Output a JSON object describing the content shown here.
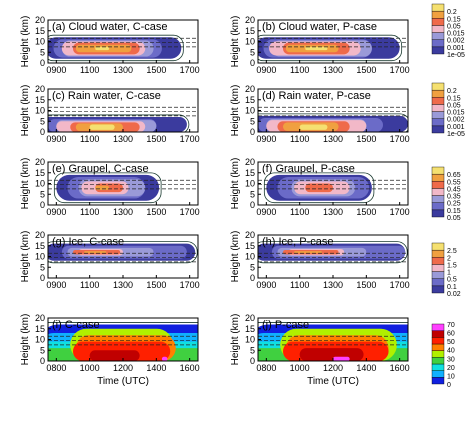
{
  "figure": {
    "xlabel": "Time (UTC)",
    "ylabel": "Height (km)"
  },
  "chart_data": [
    {
      "type": "heatmap",
      "title": "(a) Cloud water, C-case",
      "x_ticks": [
        "0900",
        "1100",
        "1300",
        "1500",
        "1700"
      ],
      "y_ticks": [
        "0",
        "5",
        "10",
        "15",
        "20"
      ],
      "ylim": [
        0,
        20
      ],
      "colorbar": [
        "1e-05",
        "0.001",
        "0.002",
        "0.015",
        "0.05",
        "0.15",
        "0.2"
      ],
      "colors": [
        "#3b3b9e",
        "#6b6bc8",
        "#9a9ad8",
        "#f2b8c8",
        "#ef6a4a",
        "#f0a040",
        "#f5e070"
      ],
      "layers": [
        {
          "level": 0,
          "t0": 820,
          "t1": 1630,
          "z0": 2,
          "z1": 12
        },
        {
          "level": 1,
          "t0": 850,
          "t1": 1480,
          "z0": 2.5,
          "z1": 11
        },
        {
          "level": 2,
          "t0": 880,
          "t1": 1450,
          "z0": 3,
          "z1": 10.5
        },
        {
          "level": 3,
          "t0": 920,
          "t1": 1420,
          "z0": 3.5,
          "z1": 10
        },
        {
          "level": 4,
          "t0": 960,
          "t1": 1360,
          "z0": 4,
          "z1": 9.5
        },
        {
          "level": 5,
          "t0": 1010,
          "t1": 1290,
          "z0": 5,
          "z1": 8.5
        },
        {
          "level": 6,
          "t0": 1080,
          "t1": 1210,
          "z0": 6,
          "z1": 7.5
        }
      ]
    },
    {
      "type": "heatmap",
      "title": "(b) Cloud water, P-case",
      "x_ticks": [
        "0900",
        "1100",
        "1300",
        "1500",
        "1700"
      ],
      "y_ticks": [
        "0",
        "5",
        "10",
        "15",
        "20"
      ],
      "ylim": [
        0,
        20
      ],
      "colorbar": [
        "1e-05",
        "0.001",
        "0.002",
        "0.015",
        "0.05",
        "0.15",
        "0.2"
      ],
      "colors": [
        "#3b3b9e",
        "#6b6bc8",
        "#9a9ad8",
        "#f2b8c8",
        "#ef6a4a",
        "#f0a040",
        "#f5e070"
      ],
      "layers": [
        {
          "level": 0,
          "t0": 820,
          "t1": 1660,
          "z0": 2,
          "z1": 12
        },
        {
          "level": 1,
          "t0": 850,
          "t1": 1520,
          "z0": 2.5,
          "z1": 11
        },
        {
          "level": 2,
          "t0": 880,
          "t1": 1480,
          "z0": 3,
          "z1": 10.5
        },
        {
          "level": 3,
          "t0": 910,
          "t1": 1440,
          "z0": 3.5,
          "z1": 10
        },
        {
          "level": 4,
          "t0": 960,
          "t1": 1400,
          "z0": 4,
          "z1": 9.5
        },
        {
          "level": 5,
          "t0": 1010,
          "t1": 1320,
          "z0": 5,
          "z1": 8.5
        },
        {
          "level": 6,
          "t0": 1080,
          "t1": 1240,
          "z0": 6,
          "z1": 7.5
        }
      ]
    },
    {
      "type": "heatmap",
      "title": "(c) Rain water, C-case",
      "x_ticks": [
        "0900",
        "1100",
        "1300",
        "1500",
        "1700"
      ],
      "y_ticks": [
        "0",
        "5",
        "10",
        "15",
        "20"
      ],
      "ylim": [
        0,
        20
      ],
      "colorbar": [
        "1e-05",
        "0.001",
        "0.002",
        "0.015",
        "0.05",
        "0.15",
        "0.2"
      ],
      "colors": [
        "#3b3b9e",
        "#6b6bc8",
        "#9a9ad8",
        "#f2b8c8",
        "#ef6a4a",
        "#f0a040",
        "#f5e070"
      ],
      "layers": [
        {
          "level": 0,
          "t0": 800,
          "t1": 1650,
          "z0": 0,
          "z1": 7
        },
        {
          "level": 1,
          "t0": 830,
          "t1": 1500,
          "z0": 0,
          "z1": 6
        },
        {
          "level": 2,
          "t0": 860,
          "t1": 1460,
          "z0": 0,
          "z1": 5.5
        },
        {
          "level": 3,
          "t0": 900,
          "t1": 1420,
          "z0": 0,
          "z1": 5
        },
        {
          "level": 4,
          "t0": 950,
          "t1": 1360,
          "z0": 0,
          "z1": 4.5
        },
        {
          "level": 5,
          "t0": 1010,
          "t1": 1300,
          "z0": 0.5,
          "z1": 4
        },
        {
          "level": 6,
          "t0": 1060,
          "t1": 1230,
          "z0": 1,
          "z1": 3.5
        }
      ]
    },
    {
      "type": "heatmap",
      "title": "(d) Rain water, P-case",
      "x_ticks": [
        "0900",
        "1100",
        "1300",
        "1500",
        "1700"
      ],
      "y_ticks": [
        "0",
        "5",
        "10",
        "15",
        "20"
      ],
      "ylim": [
        0,
        20
      ],
      "colorbar": [
        "1e-05",
        "0.001",
        "0.002",
        "0.015",
        "0.05",
        "0.15",
        "0.2"
      ],
      "colors": [
        "#3b3b9e",
        "#6b6bc8",
        "#9a9ad8",
        "#f2b8c8",
        "#ef6a4a",
        "#f0a040",
        "#f5e070"
      ],
      "layers": [
        {
          "level": 0,
          "t0": 800,
          "t1": 1690,
          "z0": 0,
          "z1": 7.5
        },
        {
          "level": 1,
          "t0": 830,
          "t1": 1560,
          "z0": 0,
          "z1": 6.5
        },
        {
          "level": 2,
          "t0": 860,
          "t1": 1500,
          "z0": 0,
          "z1": 6
        },
        {
          "level": 3,
          "t0": 900,
          "t1": 1460,
          "z0": 0,
          "z1": 5.5
        },
        {
          "level": 4,
          "t0": 940,
          "t1": 1400,
          "z0": 0,
          "z1": 5
        },
        {
          "level": 5,
          "t0": 1000,
          "t1": 1320,
          "z0": 0.5,
          "z1": 4.5
        },
        {
          "level": 6,
          "t0": 1060,
          "t1": 1240,
          "z0": 1,
          "z1": 3.5
        }
      ]
    },
    {
      "type": "heatmap",
      "title": "(e) Graupel, C-case",
      "x_ticks": [
        "0900",
        "1100",
        "1300",
        "1500",
        "1700"
      ],
      "y_ticks": [
        "0",
        "5",
        "10",
        "15",
        "20"
      ],
      "ylim": [
        0,
        20
      ],
      "colorbar": [
        "0.05",
        "0.15",
        "0.25",
        "0.35",
        "0.45",
        "0.55",
        "0.65"
      ],
      "colors": [
        "#3b3b9e",
        "#6b6bc8",
        "#9a9ad8",
        "#f2b8c8",
        "#ef6a4a",
        "#f0a040",
        "#f5e070"
      ],
      "layers": [
        {
          "level": 0,
          "t0": 900,
          "t1": 1470,
          "z0": 2,
          "z1": 14
        },
        {
          "level": 1,
          "t0": 940,
          "t1": 1420,
          "z0": 3,
          "z1": 13
        },
        {
          "level": 2,
          "t0": 980,
          "t1": 1380,
          "z0": 4,
          "z1": 12
        },
        {
          "level": 3,
          "t0": 1030,
          "t1": 1320,
          "z0": 5,
          "z1": 11
        },
        {
          "level": 4,
          "t0": 1080,
          "t1": 1260,
          "z0": 6,
          "z1": 10
        },
        {
          "level": 5,
          "t0": 1120,
          "t1": 1210,
          "z0": 7,
          "z1": 9
        }
      ]
    },
    {
      "type": "heatmap",
      "title": "(f) Graupel, P-case",
      "x_ticks": [
        "0900",
        "1100",
        "1300",
        "1500",
        "1700"
      ],
      "y_ticks": [
        "0",
        "5",
        "10",
        "15",
        "20"
      ],
      "ylim": [
        0,
        20
      ],
      "colorbar": [
        "0.05",
        "0.15",
        "0.25",
        "0.35",
        "0.45",
        "0.55",
        "0.65"
      ],
      "colors": [
        "#3b3b9e",
        "#6b6bc8",
        "#9a9ad8",
        "#f2b8c8",
        "#ef6a4a",
        "#f0a040",
        "#f5e070"
      ],
      "layers": [
        {
          "level": 0,
          "t0": 900,
          "t1": 1520,
          "z0": 2,
          "z1": 14
        },
        {
          "level": 1,
          "t0": 940,
          "t1": 1470,
          "z0": 3,
          "z1": 13
        },
        {
          "level": 2,
          "t0": 990,
          "t1": 1420,
          "z0": 4,
          "z1": 12
        },
        {
          "level": 3,
          "t0": 1040,
          "t1": 1360,
          "z0": 5,
          "z1": 11
        },
        {
          "level": 4,
          "t0": 1120,
          "t1": 1300,
          "z0": 6,
          "z1": 10
        }
      ]
    },
    {
      "type": "heatmap",
      "title": "(g) Ice, C-case",
      "x_ticks": [
        "0900",
        "1100",
        "1300",
        "1500",
        "1700"
      ],
      "y_ticks": [
        "0",
        "5",
        "10",
        "15",
        "20"
      ],
      "ylim": [
        0,
        20
      ],
      "colorbar": [
        "0.02",
        "0.1",
        "0.5",
        "1",
        "1.5",
        "2",
        "2.5"
      ],
      "colors": [
        "#3b3b9e",
        "#6b6bc8",
        "#9a9ad8",
        "#f2b8c8",
        "#ef6a4a",
        "#f0a040",
        "#f5e070"
      ],
      "layers": [
        {
          "level": 0,
          "t0": 820,
          "t1": 1720,
          "z0": 8,
          "z1": 16
        },
        {
          "level": 1,
          "t0": 880,
          "t1": 1650,
          "z0": 9,
          "z1": 15
        },
        {
          "level": 2,
          "t0": 940,
          "t1": 1450,
          "z0": 10,
          "z1": 14
        },
        {
          "level": 3,
          "t0": 980,
          "t1": 1300,
          "z0": 10.5,
          "z1": 13.5
        },
        {
          "level": 4,
          "t0": 1000,
          "t1": 1250,
          "z0": 11,
          "z1": 13
        },
        {
          "level": 5,
          "t0": 1040,
          "t1": 1160,
          "z0": 11.5,
          "z1": 12.5
        }
      ]
    },
    {
      "type": "heatmap",
      "title": "(h) Ice, P-case",
      "x_ticks": [
        "0900",
        "1100",
        "1300",
        "1500",
        "1700"
      ],
      "y_ticks": [
        "0",
        "5",
        "10",
        "15",
        "20"
      ],
      "ylim": [
        0,
        20
      ],
      "colorbar": [
        "0.02",
        "0.1",
        "0.5",
        "1",
        "1.5",
        "2",
        "2.5"
      ],
      "colors": [
        "#3b3b9e",
        "#6b6bc8",
        "#9a9ad8",
        "#f2b8c8",
        "#ef6a4a",
        "#f0a040",
        "#f5e070"
      ],
      "layers": [
        {
          "level": 0,
          "t0": 820,
          "t1": 1720,
          "z0": 8,
          "z1": 16
        },
        {
          "level": 1,
          "t0": 880,
          "t1": 1680,
          "z0": 9,
          "z1": 15
        },
        {
          "level": 2,
          "t0": 940,
          "t1": 1500,
          "z0": 10,
          "z1": 14
        },
        {
          "level": 3,
          "t0": 980,
          "t1": 1340,
          "z0": 10.5,
          "z1": 13.5
        },
        {
          "level": 4,
          "t0": 1000,
          "t1": 1280,
          "z0": 11,
          "z1": 13
        },
        {
          "level": 5,
          "t0": 1040,
          "t1": 1180,
          "z0": 11.5,
          "z1": 12.5
        }
      ]
    },
    {
      "type": "heatmap",
      "title": "(i) C-case",
      "x_ticks": [
        "0800",
        "1000",
        "1200",
        "1400",
        "1600"
      ],
      "y_ticks": [
        "0",
        "5",
        "10",
        "15",
        "20"
      ],
      "ylim": [
        0,
        20
      ],
      "colorbar": [
        "0",
        "10",
        "20",
        "30",
        "40",
        "50",
        "60",
        "70"
      ],
      "colors": [
        "#1020e0",
        "#10b0ff",
        "#10e0e0",
        "#40d040",
        "#b0f000",
        "#ff8000",
        "#ff2000",
        "#c00000",
        "#ff40ff"
      ],
      "layers": [
        {
          "level": 0,
          "t0": 700,
          "t1": 1750,
          "z0": 0,
          "z1": 17
        },
        {
          "level": 1,
          "t0": 700,
          "t1": 1750,
          "z0": 0,
          "z1": 13
        },
        {
          "level": 2,
          "t0": 700,
          "t1": 1750,
          "z0": 0,
          "z1": 9
        },
        {
          "level": 3,
          "t0": 700,
          "t1": 1700,
          "z0": 0,
          "z1": 6
        },
        {
          "level": 4,
          "t0": 850,
          "t1": 1500,
          "z0": 0,
          "z1": 15
        },
        {
          "level": 5,
          "t0": 870,
          "t1": 1470,
          "z0": 0,
          "z1": 12
        },
        {
          "level": 6,
          "t0": 900,
          "t1": 1450,
          "z0": 0,
          "z1": 9
        },
        {
          "level": 7,
          "t0": 1000,
          "t1": 1300,
          "z0": 0,
          "z1": 5
        },
        {
          "level": 8,
          "t0": 1380,
          "t1": 1440,
          "z0": 0,
          "z1": 2
        }
      ]
    },
    {
      "type": "heatmap",
      "title": "(j) P-case",
      "x_ticks": [
        "0800",
        "1000",
        "1200",
        "1400",
        "1600"
      ],
      "y_ticks": [
        "0",
        "5",
        "10",
        "15",
        "20"
      ],
      "ylim": [
        0,
        20
      ],
      "colorbar": [
        "0",
        "10",
        "20",
        "30",
        "40",
        "50",
        "60",
        "70"
      ],
      "colors": [
        "#1020e0",
        "#10b0ff",
        "#10e0e0",
        "#40d040",
        "#b0f000",
        "#ff8000",
        "#ff2000",
        "#c00000",
        "#ff40ff"
      ],
      "layers": [
        {
          "level": 0,
          "t0": 700,
          "t1": 1750,
          "z0": 0,
          "z1": 17
        },
        {
          "level": 1,
          "t0": 700,
          "t1": 1750,
          "z0": 0,
          "z1": 13
        },
        {
          "level": 2,
          "t0": 700,
          "t1": 1750,
          "z0": 0,
          "z1": 9
        },
        {
          "level": 3,
          "t0": 700,
          "t1": 1720,
          "z0": 0,
          "z1": 6
        },
        {
          "level": 4,
          "t0": 850,
          "t1": 1550,
          "z0": 0,
          "z1": 15
        },
        {
          "level": 5,
          "t0": 870,
          "t1": 1520,
          "z0": 0,
          "z1": 12
        },
        {
          "level": 6,
          "t0": 900,
          "t1": 1480,
          "z0": 0,
          "z1": 9
        },
        {
          "level": 7,
          "t0": 1000,
          "t1": 1350,
          "z0": 0,
          "z1": 6
        },
        {
          "level": 8,
          "t0": 1200,
          "t1": 1260,
          "z0": 0,
          "z1": 2
        }
      ]
    }
  ]
}
